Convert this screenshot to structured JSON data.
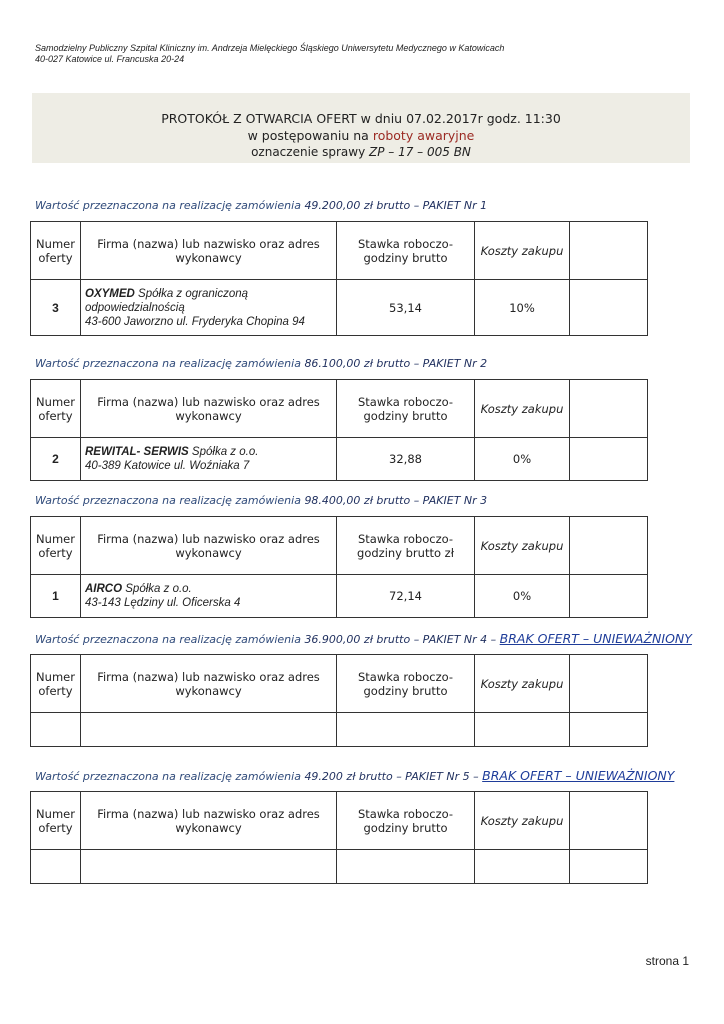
{
  "header": {
    "line1": "Samodzielny Publiczny Szpital Kliniczny im. Andrzeja Mielęckiego Śląskiego Uniwersytetu Medycznego w Katowicach",
    "line2": "40-027  Katowice ul. Francuska 20-24"
  },
  "title": {
    "line1": "PROTOKÓŁ Z OTWARCIA OFERT w dniu 07.02.2017r godz. 11:30",
    "line2_prefix": "w postępowaniu na",
    "line2_subject": "roboty awaryjne",
    "line3_prefix": "oznaczenie sprawy",
    "line3_case": "ZP – 17 –  005 BN"
  },
  "packages": [
    {
      "caption_prefix": "Wartość przeznaczona na realizację zamówienia",
      "caption_amount": "49.200,00 zł brutto",
      "caption_package": "– PAKIET Nr 1",
      "headers": [
        "Numer oferty",
        "Firma (nazwa) lub nazwisko oraz adres wykonawcy",
        "Stawka roboczo-godziny brutto",
        "Koszty zakupu"
      ],
      "rows": [
        {
          "number": "3",
          "name": "OXYMED",
          "legal_form": "Spółka z ograniczoną odpowiedzialnością",
          "address": "43-600 Jaworzno ul. Fryderyka Chopina 94",
          "rate": "53,14",
          "cost": "10%"
        }
      ]
    },
    {
      "caption_prefix": "Wartość przeznaczona na realizację zamówienia",
      "caption_amount": "86.100,00 zł brutto",
      "caption_package": "– PAKIET Nr 2",
      "headers": [
        "Numer oferty",
        "Firma (nazwa) lub nazwisko oraz adres wykonawcy",
        "Stawka roboczo-godziny brutto",
        "Koszty zakupu"
      ],
      "rows": [
        {
          "number": "2",
          "name": "REWITAL- SERWIS",
          "legal_form": "Spółka z o.o.",
          "address": "40-389 Katowice ul. Woźniaka 7",
          "rate": "32,88",
          "cost": "0%"
        }
      ]
    },
    {
      "caption_prefix": "Wartość przeznaczona na realizację zamówienia",
      "caption_amount": "98.400,00 zł brutto",
      "caption_package": "– PAKIET Nr 3",
      "headers": [
        "Numer oferty",
        "Firma (nazwa) lub nazwisko oraz adres wykonawcy",
        "Stawka roboczo-godziny brutto zł",
        "Koszty zakupu"
      ],
      "rows": [
        {
          "number": "1",
          "name": "AIRCO",
          "legal_form": "Spółka z o.o.",
          "address": "43-143 Lędziny ul. Oficerska 4",
          "rate": "72,14",
          "cost": "0%"
        }
      ]
    },
    {
      "caption_prefix": "Wartość przeznaczona na realizację zamówienia",
      "caption_amount": "36.900,00 zł brutto",
      "caption_package": "– PAKIET Nr 4 –",
      "caption_note": "BRAK OFERT – UNIEWAŻNIONY",
      "headers": [
        "Numer oferty",
        "Firma (nazwa) lub nazwisko oraz adres wykonawcy",
        "Stawka roboczo-godziny brutto",
        "Koszty zakupu"
      ],
      "rows": []
    },
    {
      "caption_prefix": "Wartość przeznaczona na realizację zamówienia",
      "caption_amount": "49.200 zł brutto",
      "caption_package": "– PAKIET Nr 5 –",
      "caption_note": "BRAK OFERT – UNIEWAŻNIONY",
      "headers": [
        "Numer oferty",
        "Firma (nazwa) lub nazwisko oraz adres wykonawcy",
        "Stawka roboczo-godziny brutto",
        "Koszty zakupu"
      ],
      "rows": []
    }
  ],
  "footer": {
    "page": "strona 1"
  }
}
